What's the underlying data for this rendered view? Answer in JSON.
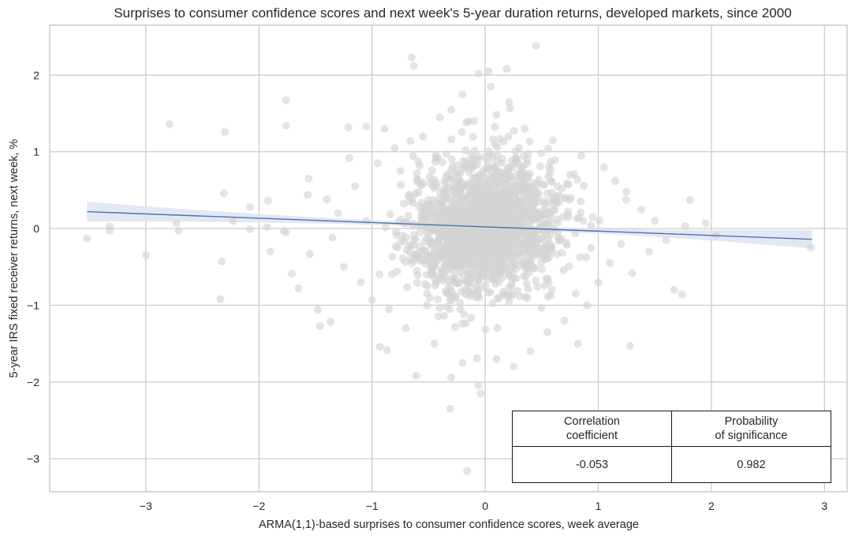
{
  "chart_data": {
    "type": "scatter",
    "title": "Surprises to consumer confidence scores and next week's 5-year duration returns, developed markets, since 2000",
    "xlabel": "ARMA(1,1)-based surprises to consumer confidence scores, week average",
    "ylabel": "5-year IRS fixed receiver returns, next week, %",
    "xlim": [
      -3.85,
      3.2
    ],
    "ylim": [
      -3.43,
      2.65
    ],
    "x_ticks": [
      -3,
      -2,
      -1,
      0,
      1,
      2,
      3
    ],
    "x_tick_labels": [
      "−3",
      "−2",
      "−1",
      "0",
      "1",
      "2",
      "3"
    ],
    "y_ticks": [
      -3,
      -2,
      -1,
      0,
      1,
      2
    ],
    "y_tick_labels": [
      "−3",
      "−2",
      "−1",
      "0",
      "1",
      "2"
    ],
    "grid": true,
    "point_color": "#d3d3d3",
    "line_color": "#4c72b0",
    "band_color": "#dde4f1",
    "regression": {
      "x_range": [
        -3.52,
        2.89
      ],
      "y_at_start": 0.22,
      "y_at_end": -0.14,
      "ci_halfwidth_at_start": 0.13,
      "ci_halfwidth_at_center": 0.02,
      "ci_halfwidth_at_end": 0.12
    },
    "dense_core": {
      "count": 1900,
      "x_mean": 0.0,
      "x_std": 0.32,
      "y_mean": 0.02,
      "y_std": 0.42,
      "seed": 7
    },
    "points": [
      [
        -3.52,
        -0.13
      ],
      [
        -3.32,
        0.03
      ],
      [
        -3.32,
        -0.03
      ],
      [
        -3.0,
        -0.35
      ],
      [
        -2.73,
        0.07
      ],
      [
        -2.71,
        -0.03
      ],
      [
        -2.79,
        1.36
      ],
      [
        -2.3,
        1.26
      ],
      [
        -2.33,
        -0.43
      ],
      [
        -2.34,
        -0.92
      ],
      [
        -2.31,
        0.46
      ],
      [
        -2.08,
        0.28
      ],
      [
        -2.08,
        -0.01
      ],
      [
        -2.23,
        0.1
      ],
      [
        -1.93,
        0.02
      ],
      [
        -1.92,
        0.36
      ],
      [
        -1.9,
        -0.3
      ],
      [
        -1.78,
        -0.03
      ],
      [
        -1.76,
        1.34
      ],
      [
        -1.71,
        -0.59
      ],
      [
        -1.65,
        -0.78
      ],
      [
        -1.57,
        0.44
      ],
      [
        -1.55,
        -0.33
      ],
      [
        -1.48,
        -1.06
      ],
      [
        -1.46,
        -1.27
      ],
      [
        -1.56,
        0.65
      ],
      [
        -1.76,
        -0.05
      ],
      [
        -1.4,
        0.38
      ],
      [
        -1.35,
        -0.12
      ],
      [
        -1.3,
        0.2
      ],
      [
        -1.25,
        -0.5
      ],
      [
        -1.2,
        0.92
      ],
      [
        -1.15,
        0.55
      ],
      [
        -1.1,
        -0.7
      ],
      [
        -1.05,
        0.1
      ],
      [
        -1.0,
        -0.93
      ],
      [
        -0.65,
        2.23
      ],
      [
        -0.63,
        2.12
      ],
      [
        0.45,
        2.38
      ],
      [
        -0.06,
        2.02
      ],
      [
        0.03,
        2.05
      ],
      [
        0.19,
        2.08
      ],
      [
        -1.76,
        1.67
      ],
      [
        -1.21,
        1.32
      ],
      [
        -1.05,
        1.33
      ],
      [
        -0.89,
        1.3
      ],
      [
        0.21,
        1.65
      ],
      [
        0.22,
        1.57
      ],
      [
        -0.4,
        1.45
      ],
      [
        -0.3,
        1.55
      ],
      [
        -0.1,
        1.4
      ],
      [
        0.1,
        1.48
      ],
      [
        0.35,
        1.3
      ],
      [
        -0.55,
        1.2
      ],
      [
        -0.16,
        -3.16
      ],
      [
        -0.31,
        -2.35
      ],
      [
        -0.06,
        -2.04
      ],
      [
        -0.04,
        -2.15
      ],
      [
        -0.3,
        -1.94
      ],
      [
        -0.61,
        -1.92
      ],
      [
        -0.93,
        -1.54
      ],
      [
        0.82,
        -1.5
      ],
      [
        1.28,
        -1.53
      ],
      [
        1.67,
        -0.8
      ],
      [
        1.74,
        -0.86
      ],
      [
        1.81,
        0.37
      ],
      [
        1.95,
        0.07
      ],
      [
        2.04,
        -0.09
      ],
      [
        2.88,
        -0.25
      ],
      [
        1.77,
        0.03
      ],
      [
        1.5,
        0.1
      ],
      [
        1.45,
        -0.3
      ],
      [
        1.38,
        0.25
      ],
      [
        1.3,
        -0.58
      ],
      [
        1.25,
        0.48
      ],
      [
        1.2,
        -0.2
      ],
      [
        1.15,
        0.62
      ],
      [
        1.1,
        -0.45
      ],
      [
        1.05,
        0.8
      ],
      [
        1.0,
        -0.7
      ],
      [
        0.95,
        0.15
      ],
      [
        0.9,
        -1.0
      ],
      [
        0.85,
        0.95
      ],
      [
        0.8,
        -0.85
      ],
      [
        0.7,
        -1.2
      ],
      [
        0.55,
        -1.35
      ],
      [
        0.4,
        -1.6
      ],
      [
        0.25,
        -1.8
      ],
      [
        0.1,
        -1.7
      ],
      [
        -0.2,
        -1.75
      ],
      [
        -0.45,
        -1.5
      ],
      [
        -0.7,
        -1.3
      ],
      [
        -0.85,
        -1.05
      ],
      [
        -0.95,
        0.85
      ],
      [
        -0.8,
        1.05
      ],
      [
        -0.2,
        1.75
      ],
      [
        0.05,
        1.85
      ],
      [
        0.3,
        1.05
      ],
      [
        0.6,
        1.15
      ],
      [
        0.75,
        0.7
      ],
      [
        -0.75,
        0.75
      ],
      [
        1.6,
        -0.15
      ]
    ]
  },
  "stats_table": {
    "headers": [
      [
        "Correlation",
        "coefficient"
      ],
      [
        "Probability",
        "of significance"
      ]
    ],
    "values": [
      "-0.053",
      "0.982"
    ]
  }
}
